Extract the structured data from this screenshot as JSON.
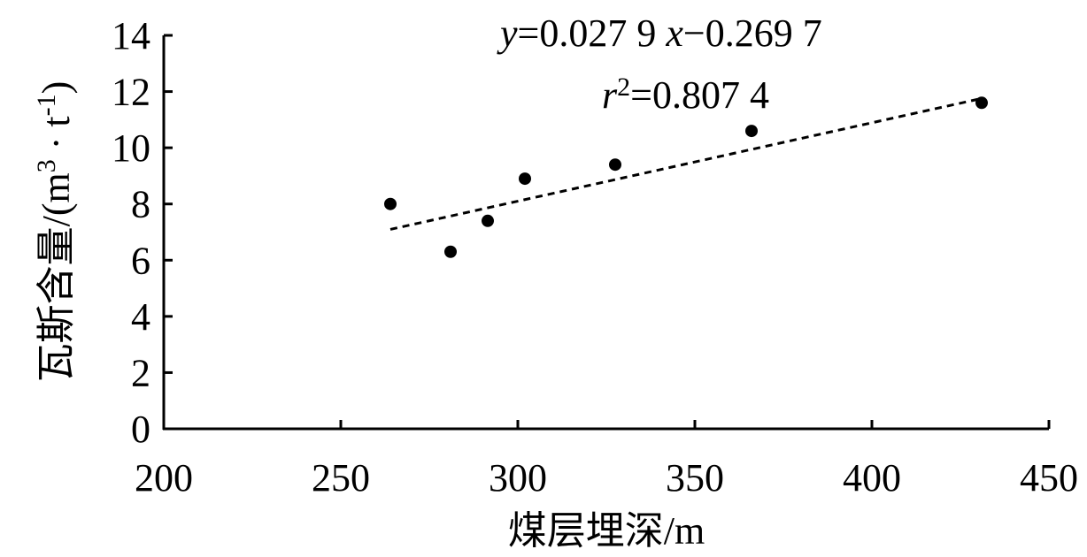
{
  "chart_data": {
    "type": "scatter",
    "x_label": "煤层埋深/m",
    "y_label": [
      "瓦斯含量/(m",
      "3",
      " · t",
      "-1",
      ")"
    ],
    "equation": [
      "y",
      "=0.027 9 ",
      "x",
      "−0.269 7"
    ],
    "r_squared": [
      "r",
      "2",
      "=0.807 4"
    ],
    "trendline": {
      "slope": 0.0279,
      "intercept": -0.2697
    },
    "color": "#000000",
    "x": [
      264,
      281,
      291.5,
      302,
      327.5,
      366,
      431
    ],
    "values": [
      8.0,
      6.3,
      7.4,
      8.9,
      9.4,
      10.6,
      11.6
    ],
    "xlim": [
      200,
      450
    ],
    "xticks": [
      200,
      250,
      300,
      350,
      400,
      450
    ],
    "ylim": [
      0,
      14
    ],
    "yticks": [
      0,
      2,
      4,
      6,
      8,
      10,
      12,
      14
    ],
    "grid": false
  }
}
